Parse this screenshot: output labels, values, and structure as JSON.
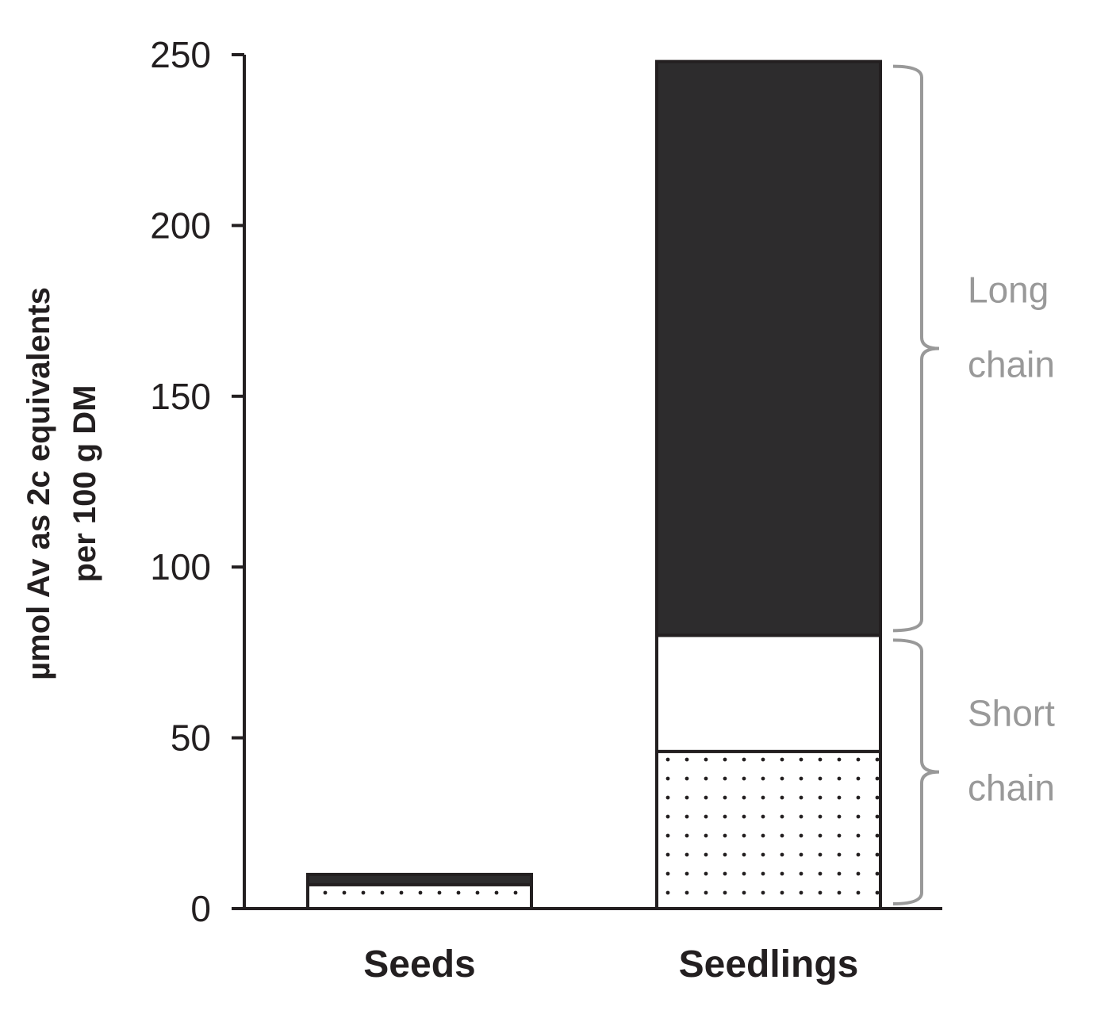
{
  "chart_data": {
    "type": "bar",
    "stacked": true,
    "categories": [
      "Seeds",
      "Seedlings"
    ],
    "series": [
      {
        "pattern": "dotted",
        "fill": "#ffffff",
        "values": [
          7,
          46
        ]
      },
      {
        "pattern": "white",
        "fill": "#ffffff",
        "values": [
          0,
          34
        ]
      },
      {
        "pattern": "solid",
        "fill": "#2d2c2d",
        "values": [
          3,
          168
        ]
      }
    ],
    "ylabel_lines": [
      "µmol Av as 2c equivalents",
      "per 100 g DM"
    ],
    "ylim": [
      0,
      250
    ],
    "yticks": [
      0,
      50,
      100,
      150,
      200,
      250
    ],
    "grid": false,
    "annotations": [
      {
        "lines": [
          "Long",
          "chain"
        ],
        "range": [
          80,
          248
        ]
      },
      {
        "lines": [
          "Short",
          "chain"
        ],
        "range": [
          0,
          80
        ]
      }
    ],
    "colors": {
      "axis": "#231f20",
      "brace": "#999999"
    }
  }
}
